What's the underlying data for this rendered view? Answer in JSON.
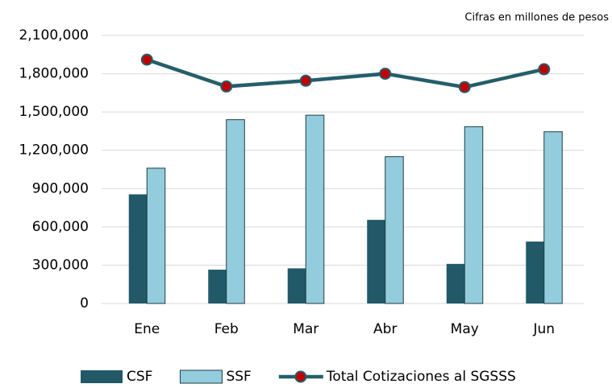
{
  "chart_data": {
    "type": "bar",
    "subtitle": "Cifras en millones de pesos",
    "categories": [
      "Ene",
      "Feb",
      "Mar",
      "Abr",
      "May",
      "Jun"
    ],
    "series": [
      {
        "name": "CSF",
        "type": "bar",
        "color": "#215968",
        "values": [
          855000,
          265000,
          275000,
          655000,
          310000,
          485000
        ]
      },
      {
        "name": "SSF",
        "type": "bar",
        "color": "#93cddd",
        "values": [
          1060000,
          1440000,
          1475000,
          1150000,
          1385000,
          1345000
        ]
      },
      {
        "name": "Total Cotizaciones al SGSSS",
        "type": "line",
        "color": "#255e6b",
        "marker_color": "#c00000",
        "values": [
          1910000,
          1700000,
          1745000,
          1800000,
          1695000,
          1835000
        ]
      }
    ],
    "ylim": [
      0,
      2100000
    ],
    "yticks": [
      0,
      {
        "value": 300000,
        "label": "300,000"
      },
      {
        "value": 600000,
        "label": "600,000"
      },
      {
        "value": 900000,
        "label": "900,000"
      },
      {
        "value": 1200000,
        "label": "1,200,000"
      },
      {
        "value": 1500000,
        "label": "1,500,000"
      },
      {
        "value": 1800000,
        "label": "1,800,000"
      },
      {
        "value": 2100000,
        "label": "2,100,000"
      }
    ],
    "grid": true,
    "legend": "bottom"
  }
}
